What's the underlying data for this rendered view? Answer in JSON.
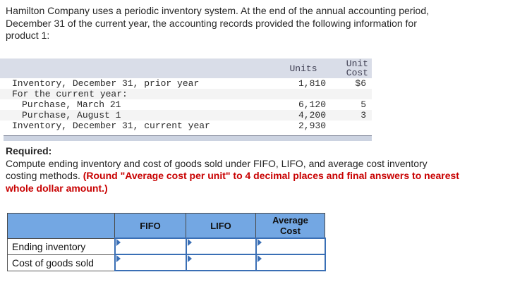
{
  "intro": {
    "lines": [
      "Hamilton Company uses a periodic inventory system. At the end of the annual accounting period,",
      "December 31 of the current year, the accounting records provided the following information for",
      "product 1:"
    ]
  },
  "inventory_table": {
    "header": {
      "units": "Units",
      "unit_cost_line1": "Unit",
      "unit_cost_line2": "Cost"
    },
    "rows": [
      {
        "label": "Inventory, December 31, prior year",
        "units": "1,810",
        "unit_cost": "$6"
      },
      {
        "label": "For the current year:",
        "units": "",
        "unit_cost": ""
      },
      {
        "label": "Purchase, March 21",
        "units": "6,120",
        "unit_cost": "5"
      },
      {
        "label": "Purchase, August 1",
        "units": "4,200",
        "unit_cost": "3"
      },
      {
        "label": "Inventory, December 31, current year",
        "units": "2,930",
        "unit_cost": ""
      }
    ]
  },
  "required": {
    "heading": "Required:",
    "line1_black": "Compute ending inventory and cost of goods sold under FIFO, LIFO, and average cost inventory",
    "line2_black": "costing methods. ",
    "line2_red": "(Round \"Average cost per unit\" to 4 decimal places and final answers to nearest",
    "line3_red": "whole dollar amount.)"
  },
  "answer_table": {
    "columns": [
      "FIFO",
      "LIFO",
      "Average Cost"
    ],
    "rows": [
      {
        "label": "Ending inventory",
        "values": [
          "",
          "",
          ""
        ]
      },
      {
        "label": "Cost of goods sold",
        "values": [
          "",
          "",
          ""
        ]
      }
    ]
  },
  "colors": {
    "answer_header_blue": "#73a7e3",
    "input_border_blue": "#3a6fb5",
    "marker_blue": "#3a6fb5",
    "required_red": "#c80000",
    "inventory_header_bg": "#d9dde8",
    "alt_row_bg": "#f4f4f4",
    "scrollbar_bg": "#ccd3e1"
  }
}
